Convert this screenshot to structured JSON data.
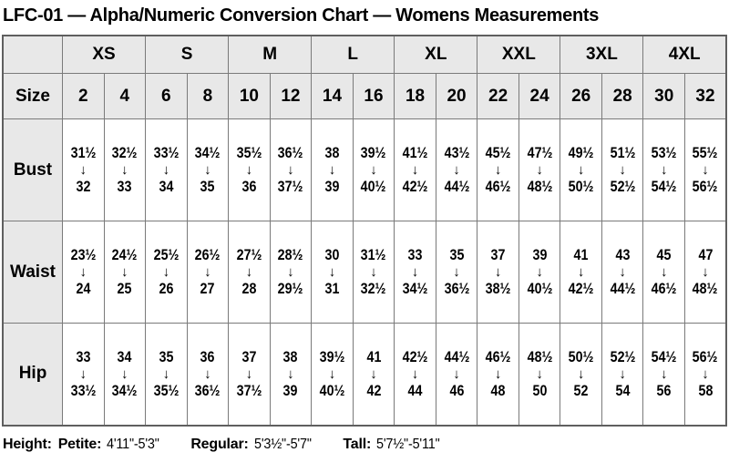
{
  "title": "LFC-01 — Alpha/Numeric Conversion Chart — Womens Measurements",
  "chart_data": {
    "type": "table",
    "size_row_label": "Size",
    "arrow_icon": "↓",
    "alpha_groups": [
      {
        "label": "XS",
        "sizes": [
          "2",
          "4"
        ]
      },
      {
        "label": "S",
        "sizes": [
          "6",
          "8"
        ]
      },
      {
        "label": "M",
        "sizes": [
          "10",
          "12"
        ]
      },
      {
        "label": "L",
        "sizes": [
          "14",
          "16"
        ]
      },
      {
        "label": "XL",
        "sizes": [
          "18",
          "20"
        ]
      },
      {
        "label": "XXL",
        "sizes": [
          "22",
          "24"
        ]
      },
      {
        "label": "3XL",
        "sizes": [
          "26",
          "28"
        ]
      },
      {
        "label": "4XL",
        "sizes": [
          "30",
          "32"
        ]
      }
    ],
    "numeric_sizes": [
      "2",
      "4",
      "6",
      "8",
      "10",
      "12",
      "14",
      "16",
      "18",
      "20",
      "22",
      "24",
      "26",
      "28",
      "30",
      "32"
    ],
    "measurements": [
      {
        "label": "Bust",
        "ranges": [
          [
            "31½",
            "32"
          ],
          [
            "32½",
            "33"
          ],
          [
            "33½",
            "34"
          ],
          [
            "34½",
            "35"
          ],
          [
            "35½",
            "36"
          ],
          [
            "36½",
            "37½"
          ],
          [
            "38",
            "39"
          ],
          [
            "39½",
            "40½"
          ],
          [
            "41½",
            "42½"
          ],
          [
            "43½",
            "44½"
          ],
          [
            "45½",
            "46½"
          ],
          [
            "47½",
            "48½"
          ],
          [
            "49½",
            "50½"
          ],
          [
            "51½",
            "52½"
          ],
          [
            "53½",
            "54½"
          ],
          [
            "55½",
            "56½"
          ]
        ]
      },
      {
        "label": "Waist",
        "ranges": [
          [
            "23½",
            "24"
          ],
          [
            "24½",
            "25"
          ],
          [
            "25½",
            "26"
          ],
          [
            "26½",
            "27"
          ],
          [
            "27½",
            "28"
          ],
          [
            "28½",
            "29½"
          ],
          [
            "30",
            "31"
          ],
          [
            "31½",
            "32½"
          ],
          [
            "33",
            "34½"
          ],
          [
            "35",
            "36½"
          ],
          [
            "37",
            "38½"
          ],
          [
            "39",
            "40½"
          ],
          [
            "41",
            "42½"
          ],
          [
            "43",
            "44½"
          ],
          [
            "45",
            "46½"
          ],
          [
            "47",
            "48½"
          ]
        ]
      },
      {
        "label": "Hip",
        "ranges": [
          [
            "33",
            "33½"
          ],
          [
            "34",
            "34½"
          ],
          [
            "35",
            "35½"
          ],
          [
            "36",
            "36½"
          ],
          [
            "37",
            "37½"
          ],
          [
            "38",
            "39"
          ],
          [
            "39½",
            "40½"
          ],
          [
            "41",
            "42"
          ],
          [
            "42½",
            "44"
          ],
          [
            "44½",
            "46"
          ],
          [
            "46½",
            "48"
          ],
          [
            "48½",
            "50"
          ],
          [
            "50½",
            "52"
          ],
          [
            "52½",
            "54"
          ],
          [
            "54½",
            "56"
          ],
          [
            "56½",
            "58"
          ]
        ]
      }
    ]
  },
  "footer": {
    "height_label": "Height:",
    "entries": [
      {
        "label": "Petite:",
        "value": "4'11\"-5'3\""
      },
      {
        "label": "Regular:",
        "value": "5'3½\"-5'7\""
      },
      {
        "label": "Tall:",
        "value": "5'7½\"-5'11\""
      }
    ]
  },
  "colors": {
    "header_bg": "#e8e8e8",
    "border_inner": "#7a7a7a",
    "border_outer": "#5f5f5f",
    "text": "#000000",
    "background": "#ffffff"
  }
}
